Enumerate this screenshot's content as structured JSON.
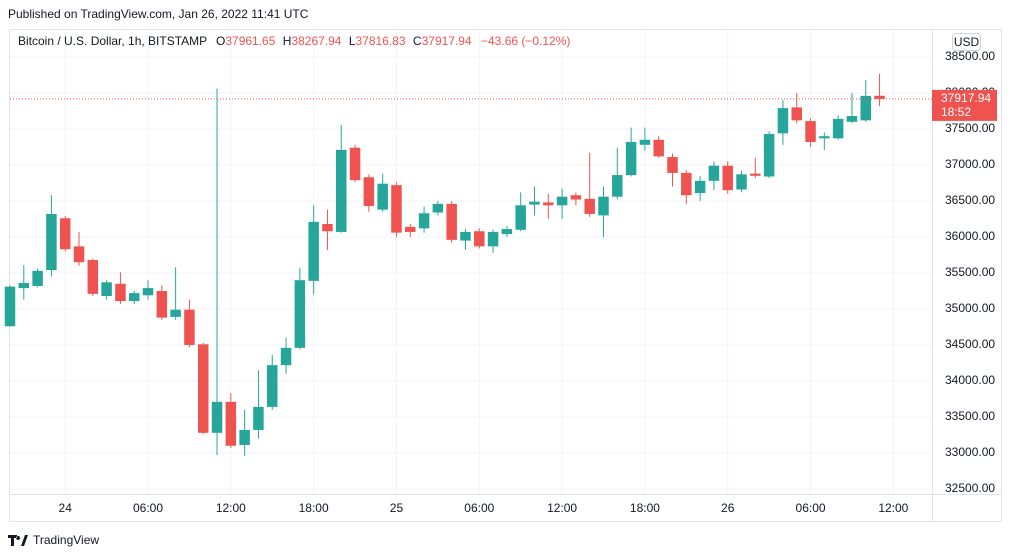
{
  "header": {
    "published": "Published on TradingView.com, Jan 26, 2022 11:41 UTC",
    "brand": "TradingView"
  },
  "chart_data": {
    "type": "candlestick",
    "symbol": "Bitcoin / U.S. Dollar, 1h, BITSTAMP",
    "ohlc_labels": [
      "O",
      "H",
      "L",
      "C"
    ],
    "change": "−43.66 (−0.12%)",
    "currency": "USD",
    "countdown": "18:52",
    "up_color": "#26a69a",
    "down_color": "#ef5350",
    "grid": true,
    "x": [
      -4,
      -3,
      -2,
      -1,
      0,
      1,
      2,
      3,
      4,
      5,
      6,
      7,
      8,
      9,
      10,
      11,
      12,
      13,
      14,
      15,
      16,
      17,
      18,
      19,
      20,
      21,
      22,
      23,
      24,
      25,
      26,
      27,
      28,
      29,
      30,
      31,
      32,
      33,
      34,
      35,
      36,
      37,
      38,
      39,
      40,
      41,
      42,
      43,
      44,
      45,
      46,
      47,
      48,
      49,
      50,
      51,
      52,
      53,
      54,
      55,
      56,
      57,
      58,
      59
    ],
    "open": [
      34760,
      35290,
      35320,
      35540,
      36260,
      35870,
      35680,
      35180,
      35350,
      35110,
      35190,
      35250,
      34890,
      34990,
      34510,
      33280,
      33710,
      33110,
      33320,
      33640,
      34220,
      34460,
      35390,
      36180,
      36070,
      37240,
      36830,
      36380,
      36720,
      36140,
      36120,
      36340,
      36460,
      35950,
      36080,
      35870,
      36040,
      36100,
      36450,
      36480,
      36440,
      36580,
      36530,
      36300,
      36560,
      36860,
      37280,
      37350,
      37110,
      36890,
      36610,
      36780,
      36990,
      36660,
      36880,
      36840,
      37440,
      37800,
      37610,
      37370,
      37370,
      37600,
      37620,
      37961.65
    ],
    "high": [
      35330,
      35610,
      35560,
      36580,
      36290,
      36070,
      35700,
      35400,
      35510,
      35250,
      35400,
      35330,
      35580,
      35130,
      34530,
      38060,
      33830,
      33600,
      34150,
      34360,
      34600,
      35570,
      36440,
      36380,
      37560,
      37280,
      36870,
      36880,
      36760,
      36180,
      36420,
      36500,
      36500,
      36110,
      36120,
      36100,
      36150,
      36620,
      36700,
      36600,
      36670,
      36620,
      37170,
      36700,
      37240,
      37520,
      37520,
      37400,
      37160,
      36930,
      36850,
      37050,
      37050,
      36920,
      37100,
      37470,
      37900,
      38000,
      37650,
      37450,
      37690,
      38000,
      38180,
      38267.94
    ],
    "low": [
      34760,
      35130,
      35300,
      35450,
      35800,
      35600,
      35180,
      35130,
      35070,
      35070,
      35130,
      34850,
      34850,
      34470,
      33260,
      32970,
      33070,
      32960,
      33200,
      33600,
      34100,
      34440,
      35200,
      35820,
      36060,
      36760,
      36350,
      36350,
      36000,
      36000,
      36060,
      36300,
      35920,
      35820,
      35840,
      35780,
      36000,
      36080,
      36300,
      36250,
      36250,
      36440,
      36280,
      36000,
      36520,
      36840,
      37200,
      37100,
      36700,
      36460,
      36500,
      36650,
      36600,
      36620,
      36820,
      36820,
      37280,
      37580,
      37250,
      37210,
      37350,
      37580,
      37600,
      37816.83
    ],
    "close": [
      35310,
      35360,
      35530,
      36320,
      35830,
      35650,
      35210,
      35370,
      35110,
      35220,
      35290,
      34880,
      34990,
      34500,
      33280,
      33710,
      33100,
      33320,
      33640,
      34220,
      34460,
      35400,
      36210,
      36080,
      37210,
      36790,
      36430,
      36740,
      36060,
      36070,
      36330,
      36460,
      35960,
      36070,
      35870,
      36070,
      36110,
      36440,
      36490,
      36440,
      36560,
      36520,
      36320,
      36560,
      36860,
      37320,
      37350,
      37120,
      36890,
      36580,
      36780,
      36990,
      36650,
      36870,
      36850,
      37430,
      37790,
      37620,
      37320,
      37400,
      37640,
      37680,
      37960,
      37917.94
    ],
    "xlim": [
      -4,
      62.8
    ],
    "ylim": [
      32430,
      38875
    ],
    "xticks": [
      {
        "value": 0,
        "label": "24"
      },
      {
        "value": 6,
        "label": "06:00"
      },
      {
        "value": 12,
        "label": "12:00"
      },
      {
        "value": 18,
        "label": "18:00"
      },
      {
        "value": 24,
        "label": "25"
      },
      {
        "value": 30,
        "label": "06:00"
      },
      {
        "value": 36,
        "label": "12:00"
      },
      {
        "value": 42,
        "label": "18:00"
      },
      {
        "value": 48,
        "label": "26"
      },
      {
        "value": 54,
        "label": "06:00"
      },
      {
        "value": 60,
        "label": "12:00"
      }
    ],
    "yticks": [
      {
        "value": 32500,
        "label": "32500.00"
      },
      {
        "value": 33000,
        "label": "33000.00"
      },
      {
        "value": 33500,
        "label": "33500.00"
      },
      {
        "value": 34000,
        "label": "34000.00"
      },
      {
        "value": 34500,
        "label": "34500.00"
      },
      {
        "value": 35000,
        "label": "35000.00"
      },
      {
        "value": 35500,
        "label": "35500.00"
      },
      {
        "value": 36000,
        "label": "36000.00"
      },
      {
        "value": 36500,
        "label": "36500.00"
      },
      {
        "value": 37000,
        "label": "37000.00"
      },
      {
        "value": 37500,
        "label": "37500.00"
      },
      {
        "value": 38000,
        "label": "38000.00"
      },
      {
        "value": 38500,
        "label": "38500.00"
      }
    ]
  }
}
